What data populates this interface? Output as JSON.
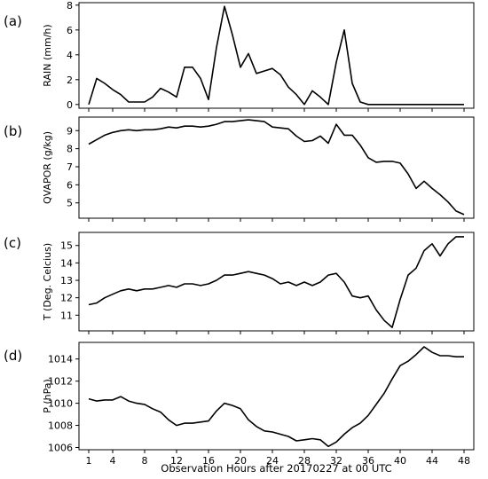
{
  "chart_data": [
    {
      "type": "line",
      "panel_label": "(a)",
      "ylabel": "RAIN (mm/h)",
      "xlim": [
        1,
        48
      ],
      "ylim": [
        -0.3,
        8.2
      ],
      "yticks": [
        0,
        2,
        4,
        6,
        8
      ],
      "x": [
        1,
        2,
        3,
        4,
        5,
        6,
        7,
        8,
        9,
        10,
        11,
        12,
        13,
        14,
        15,
        16,
        17,
        18,
        19,
        20,
        21,
        22,
        23,
        24,
        25,
        26,
        27,
        28,
        29,
        30,
        31,
        32,
        33,
        34,
        35,
        36,
        37,
        38,
        39,
        40,
        41,
        42,
        43,
        44,
        45,
        46,
        47,
        48
      ],
      "values": [
        0.0,
        2.1,
        1.7,
        1.2,
        0.8,
        0.2,
        0.2,
        0.2,
        0.6,
        1.3,
        1.0,
        0.6,
        3.0,
        3.0,
        2.1,
        0.4,
        4.6,
        7.9,
        5.6,
        3.0,
        4.1,
        2.5,
        2.7,
        2.9,
        2.4,
        1.4,
        0.8,
        0.0,
        1.1,
        0.6,
        0.0,
        3.4,
        6.0,
        1.7,
        0.2,
        0.0,
        0.0,
        0.0,
        0.0,
        0.0,
        0.0,
        0.0,
        0.0,
        0.0,
        0.0,
        0.0,
        0.0,
        0.0
      ]
    },
    {
      "type": "line",
      "panel_label": "(b)",
      "ylabel": "QVAPOR (g/kg)",
      "xlim": [
        1,
        48
      ],
      "ylim": [
        4.15,
        9.75
      ],
      "yticks": [
        5,
        6,
        7,
        8,
        9
      ],
      "x": [
        1,
        2,
        3,
        4,
        5,
        6,
        7,
        8,
        9,
        10,
        11,
        12,
        13,
        14,
        15,
        16,
        17,
        18,
        19,
        20,
        21,
        22,
        23,
        24,
        25,
        26,
        27,
        28,
        29,
        30,
        31,
        32,
        33,
        34,
        35,
        36,
        37,
        38,
        39,
        40,
        41,
        42,
        43,
        44,
        45,
        46,
        47,
        48
      ],
      "values": [
        8.25,
        8.5,
        8.75,
        8.9,
        9.0,
        9.05,
        9.0,
        9.05,
        9.05,
        9.1,
        9.2,
        9.15,
        9.25,
        9.25,
        9.2,
        9.25,
        9.35,
        9.5,
        9.5,
        9.55,
        9.6,
        9.55,
        9.5,
        9.2,
        9.15,
        9.1,
        8.7,
        8.4,
        8.45,
        8.7,
        8.3,
        9.35,
        8.75,
        8.75,
        8.2,
        7.5,
        7.25,
        7.3,
        7.3,
        7.2,
        6.6,
        5.8,
        6.2,
        5.8,
        5.45,
        5.05,
        4.55,
        4.35
      ]
    },
    {
      "type": "line",
      "panel_label": "(c)",
      "ylabel": "T (Deg. Celcius)",
      "xlim": [
        1,
        48
      ],
      "ylim": [
        10.1,
        15.75
      ],
      "yticks": [
        11,
        12,
        13,
        14,
        15
      ],
      "x": [
        1,
        2,
        3,
        4,
        5,
        6,
        7,
        8,
        9,
        10,
        11,
        12,
        13,
        14,
        15,
        16,
        17,
        18,
        19,
        20,
        21,
        22,
        23,
        24,
        25,
        26,
        27,
        28,
        29,
        30,
        31,
        32,
        33,
        34,
        35,
        36,
        37,
        38,
        39,
        40,
        41,
        42,
        43,
        44,
        45,
        46,
        47,
        48
      ],
      "values": [
        11.6,
        11.7,
        12.0,
        12.2,
        12.4,
        12.5,
        12.4,
        12.5,
        12.5,
        12.6,
        12.7,
        12.6,
        12.8,
        12.8,
        12.7,
        12.8,
        13.0,
        13.3,
        13.3,
        13.4,
        13.5,
        13.4,
        13.3,
        13.1,
        12.8,
        12.9,
        12.7,
        12.9,
        12.7,
        12.9,
        13.3,
        13.4,
        12.9,
        12.1,
        12.0,
        12.1,
        11.3,
        10.7,
        10.3,
        11.9,
        13.3,
        13.7,
        14.7,
        15.1,
        14.4,
        15.1,
        15.5,
        15.5
      ]
    },
    {
      "type": "line",
      "panel_label": "(d)",
      "ylabel": "P (hPa)",
      "xlim": [
        1,
        48
      ],
      "ylim": [
        1005.8,
        1015.5
      ],
      "yticks": [
        1006,
        1008,
        1010,
        1012,
        1014
      ],
      "x": [
        1,
        2,
        3,
        4,
        5,
        6,
        7,
        8,
        9,
        10,
        11,
        12,
        13,
        14,
        15,
        16,
        17,
        18,
        19,
        20,
        21,
        22,
        23,
        24,
        25,
        26,
        27,
        28,
        29,
        30,
        31,
        32,
        33,
        34,
        35,
        36,
        37,
        38,
        39,
        40,
        41,
        42,
        43,
        44,
        45,
        46,
        47,
        48
      ],
      "values": [
        1010.4,
        1010.2,
        1010.3,
        1010.3,
        1010.6,
        1010.2,
        1010.0,
        1009.9,
        1009.5,
        1009.2,
        1008.5,
        1008.0,
        1008.2,
        1008.2,
        1008.3,
        1008.4,
        1009.3,
        1010.0,
        1009.8,
        1009.5,
        1008.5,
        1007.9,
        1007.5,
        1007.4,
        1007.2,
        1007.0,
        1006.6,
        1006.7,
        1006.8,
        1006.7,
        1006.1,
        1006.5,
        1007.2,
        1007.8,
        1008.2,
        1008.9,
        1009.9,
        1010.9,
        1012.2,
        1013.4,
        1013.8,
        1014.4,
        1015.1,
        1014.6,
        1014.3,
        1014.3,
        1014.2,
        1014.2
      ]
    }
  ],
  "x_axis": {
    "label": "Observation Hours after 20170227 at 00 UTC",
    "ticks": [
      1,
      4,
      8,
      12,
      16,
      20,
      24,
      28,
      32,
      36,
      40,
      44,
      48
    ]
  }
}
